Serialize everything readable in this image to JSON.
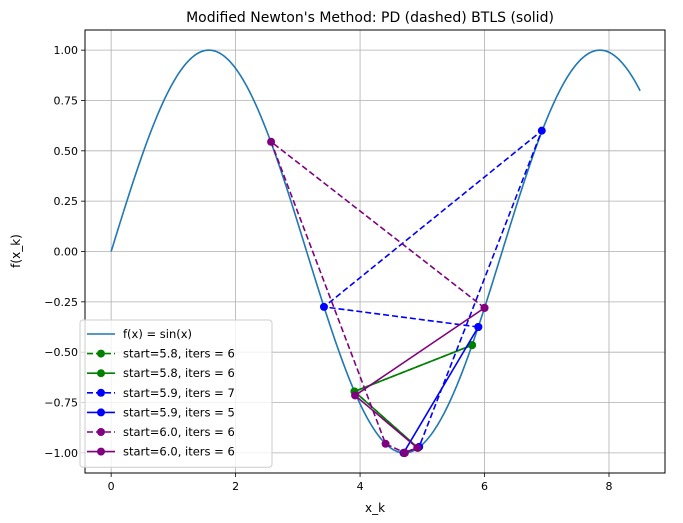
{
  "chart_data": {
    "type": "line",
    "title": "Modified Newton's Method: PD (dashed) BTLS (solid)",
    "xlabel": "x_k",
    "ylabel": "f(x_k)",
    "xlim": [
      -0.42,
      8.9
    ],
    "ylim": [
      -1.1,
      1.1
    ],
    "xticks": [
      0,
      2,
      4,
      6,
      8
    ],
    "xtick_labels": [
      "0",
      "2",
      "4",
      "6",
      "8"
    ],
    "yticks": [
      -1.0,
      -0.75,
      -0.5,
      -0.25,
      0.0,
      0.25,
      0.5,
      0.75,
      1.0
    ],
    "ytick_labels": [
      "−1.00",
      "−0.75",
      "−0.50",
      "−0.25",
      "0.00",
      "0.25",
      "0.50",
      "0.75",
      "1.00"
    ],
    "grid": true,
    "legend_position": "lower-left",
    "function_curve": {
      "name": "f(x) = sin(x)",
      "color": "#1f77b4",
      "x_range": [
        0,
        8.5
      ]
    },
    "series": [
      {
        "name": "start=5.8, iters = 6",
        "color": "#008000",
        "style": "dashed",
        "x": [
          5.8,
          3.91,
          4.93,
          4.7,
          4.712
        ],
        "y": [
          -0.465,
          -0.695,
          -0.975,
          -1.0,
          -1.0
        ]
      },
      {
        "name": "start=5.8, iters = 6",
        "color": "#008000",
        "style": "solid",
        "x": [
          5.8,
          3.91,
          4.93,
          4.7,
          4.712
        ],
        "y": [
          -0.465,
          -0.695,
          -0.975,
          -1.0,
          -1.0
        ]
      },
      {
        "name": "start=5.9, iters = 7",
        "color": "#0000ff",
        "style": "dashed",
        "x": [
          5.9,
          3.42,
          6.92,
          4.95,
          4.71,
          4.712
        ],
        "y": [
          -0.375,
          -0.275,
          0.6,
          -0.97,
          -1.0,
          -1.0
        ]
      },
      {
        "name": "start=5.9, iters = 5",
        "color": "#0000ff",
        "style": "solid",
        "x": [
          5.9,
          4.7,
          4.712
        ],
        "y": [
          -0.375,
          -1.0,
          -1.0
        ]
      },
      {
        "name": "start=6.0, iters = 6",
        "color": "#800080",
        "style": "dashed",
        "x": [
          6.0,
          2.57,
          4.41,
          4.72,
          4.712
        ],
        "y": [
          -0.28,
          0.545,
          -0.955,
          -1.0,
          -1.0
        ]
      },
      {
        "name": "start=6.0, iters = 6",
        "color": "#800080",
        "style": "solid",
        "x": [
          6.0,
          3.92,
          4.92,
          4.71,
          4.712
        ],
        "y": [
          -0.28,
          -0.715,
          -0.975,
          -1.0,
          -1.0
        ]
      }
    ]
  }
}
